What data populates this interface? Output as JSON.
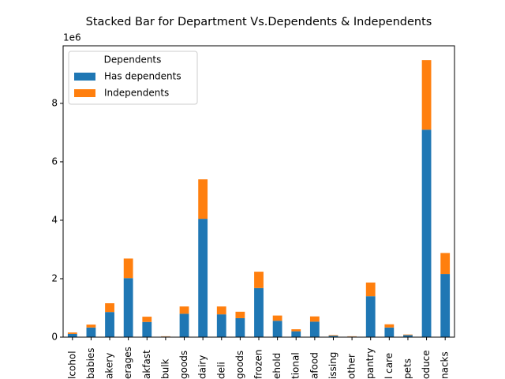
{
  "chart_data": {
    "type": "stacked_bar",
    "title": "Stacked Bar for Department Vs.Dependents & Independents",
    "offset_label": "1e6",
    "categories": [
      "lcohol",
      "babies",
      "akery",
      "erages",
      "akfast",
      "bulk",
      "goods",
      "dairy",
      "deli",
      "goods",
      "frozen",
      "ehold",
      "tional",
      "afood",
      "issing",
      "other",
      "pantry",
      "l care",
      "pets",
      "oduce",
      "nacks"
    ],
    "series": [
      {
        "name": "Has dependents",
        "color": "#1f77b4",
        "values": [
          0.11,
          0.33,
          0.86,
          2.02,
          0.52,
          0.02,
          0.8,
          4.05,
          0.78,
          0.65,
          1.68,
          0.56,
          0.2,
          0.53,
          0.05,
          0.02,
          1.4,
          0.33,
          0.07,
          7.1,
          2.16
        ]
      },
      {
        "name": "Independents",
        "color": "#ff7f0e",
        "values": [
          0.05,
          0.1,
          0.3,
          0.67,
          0.18,
          0.01,
          0.25,
          1.35,
          0.27,
          0.22,
          0.56,
          0.18,
          0.07,
          0.18,
          0.02,
          0.01,
          0.47,
          0.11,
          0.02,
          2.38,
          0.72
        ]
      }
    ],
    "legend_title": "Dependents",
    "legend": "upper left",
    "ylim": [
      0,
      9.97
    ],
    "yticks": [
      0,
      2,
      4,
      6,
      8
    ]
  }
}
